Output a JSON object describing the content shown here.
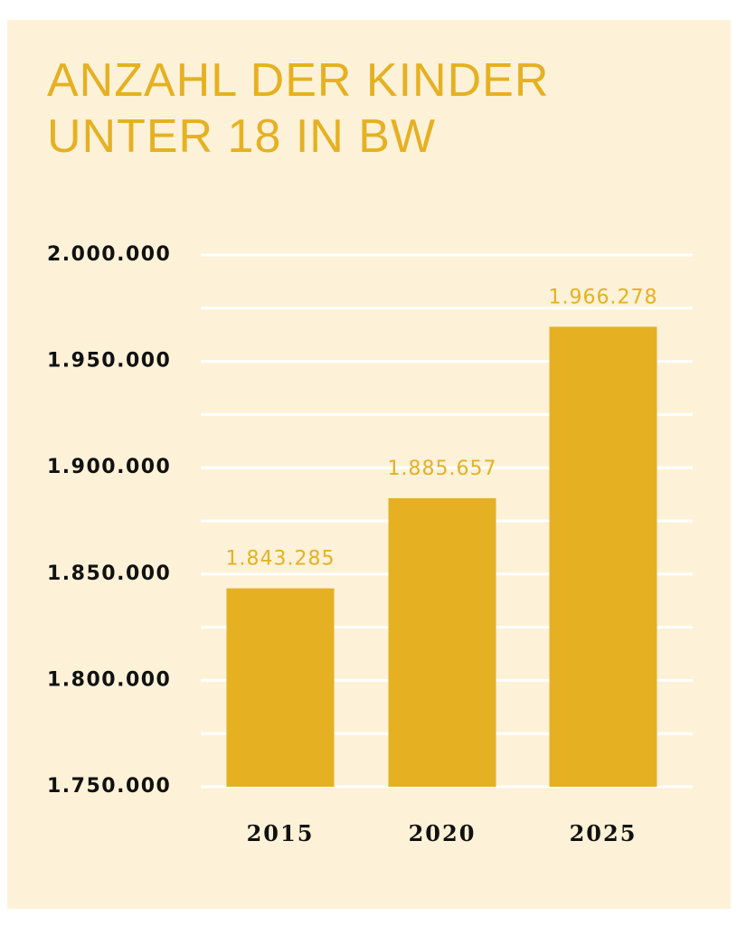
{
  "colors": {
    "background": "#fdf2d8",
    "accent": "#e5b022",
    "text": "#111111",
    "grid": "#ffffff"
  },
  "chart_data": {
    "type": "bar",
    "title": "ANZAHL DER KINDER\nUNTER 18 IN BW",
    "xlabel": "",
    "ylabel": "",
    "categories": [
      "2015",
      "2020",
      "2025"
    ],
    "values": [
      1843285,
      1885657,
      1966278
    ],
    "data_labels": [
      "1.843.285",
      "1.885.657",
      "1.966.278"
    ],
    "ylim": [
      1750000,
      2000000
    ],
    "yticks": [
      1750000,
      1800000,
      1850000,
      1900000,
      1950000,
      2000000
    ],
    "ytick_labels": [
      "1.750.000",
      "1.800.000",
      "1.850.000",
      "1.900.000",
      "1.950.000",
      "2.000.000"
    ],
    "grid": true,
    "legend": "none"
  }
}
